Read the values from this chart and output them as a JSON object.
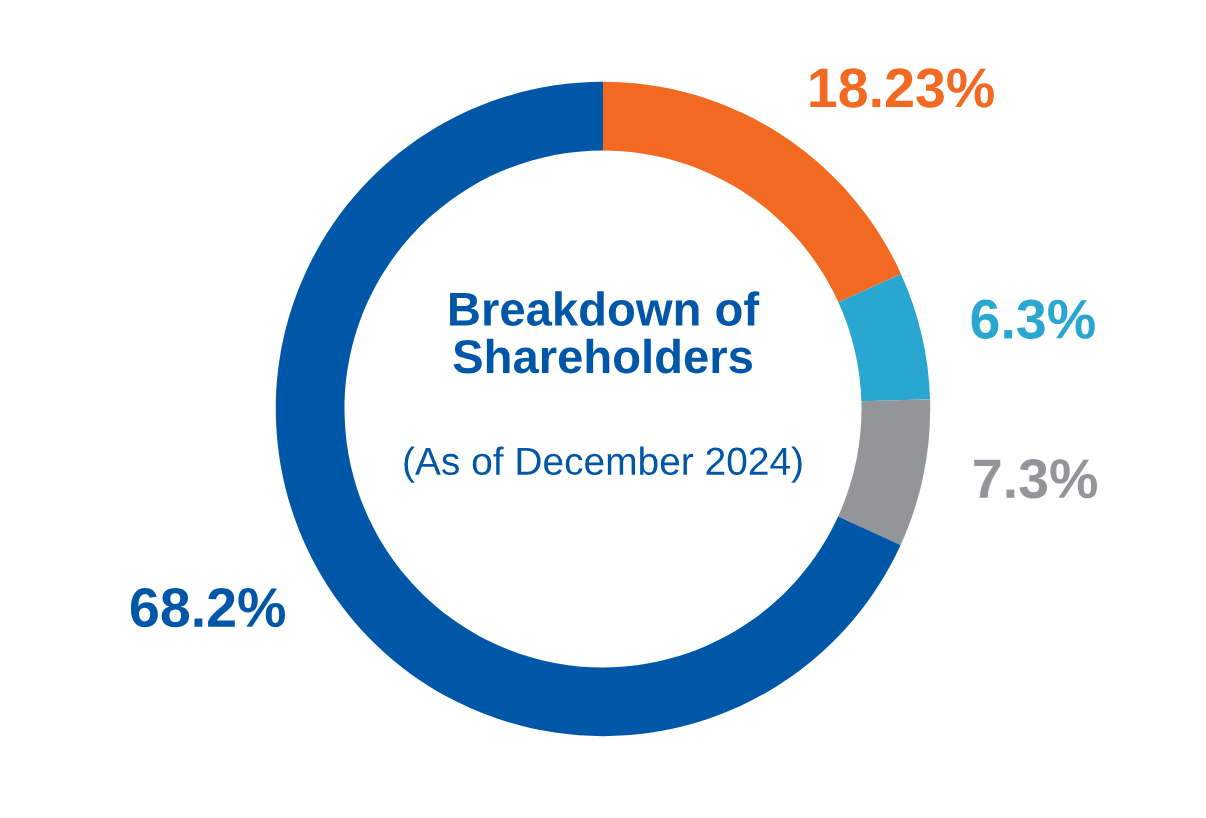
{
  "chart_data": {
    "type": "donut",
    "title": "Breakdown of Shareholders",
    "subtitle": "(As of December 2024)",
    "categories": [
      null,
      null,
      null,
      null
    ],
    "values": [
      18.23,
      6.3,
      7.3,
      68.2
    ],
    "colors": [
      "#f26a21",
      "#2aa7d1",
      "#939598",
      "#0057a8"
    ],
    "value_labels": [
      "18.23%",
      "6.3%",
      "7.3%",
      "68.2%"
    ]
  }
}
